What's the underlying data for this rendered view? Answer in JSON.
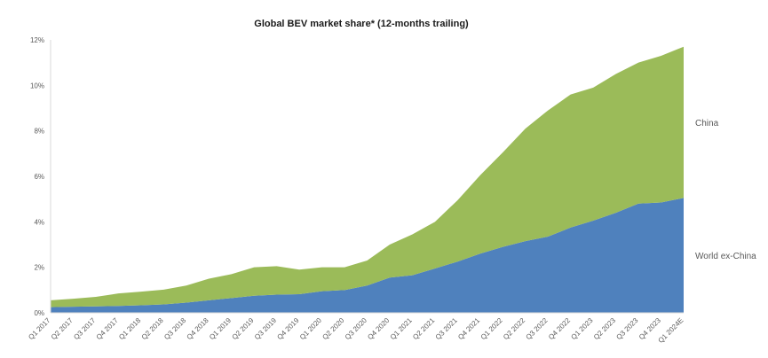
{
  "chart_data": {
    "type": "area",
    "stacked": true,
    "title": "Global BEV market share* (12-months trailing)",
    "xlabel": "",
    "ylabel": "",
    "ylim": [
      0,
      12
    ],
    "yticks": [
      0,
      2,
      4,
      6,
      8,
      10,
      12
    ],
    "ytick_labels": [
      "0%",
      "2%",
      "4%",
      "6%",
      "8%",
      "10%",
      "12%"
    ],
    "grid": false,
    "categories": [
      "Q1 2017",
      "Q2 2017",
      "Q3 2017",
      "Q4 2017",
      "Q1 2018",
      "Q2 2018",
      "Q3 2018",
      "Q4 2018",
      "Q1 2019",
      "Q2 2019",
      "Q3 2019",
      "Q4 2019",
      "Q1 2020",
      "Q2 2020",
      "Q3 2020",
      "Q4 2020",
      "Q1 2021",
      "Q2 2021",
      "Q3 2021",
      "Q4 2021",
      "Q1 2022",
      "Q2 2022",
      "Q3 2022",
      "Q4 2022",
      "Q1 2023",
      "Q2 2023",
      "Q3 2023",
      "Q4 2023",
      "Q1 2024E"
    ],
    "series": [
      {
        "name": "World ex-China",
        "color": "#4f81bd",
        "values": [
          0.25,
          0.27,
          0.28,
          0.3,
          0.33,
          0.37,
          0.45,
          0.55,
          0.65,
          0.75,
          0.8,
          0.82,
          0.95,
          1.0,
          1.2,
          1.55,
          1.65,
          1.95,
          2.25,
          2.6,
          2.9,
          3.15,
          3.35,
          3.75,
          4.05,
          4.4,
          4.8,
          4.85,
          5.05
        ]
      },
      {
        "name": "China",
        "color": "#9bbb59",
        "values": [
          0.3,
          0.35,
          0.42,
          0.55,
          0.6,
          0.65,
          0.75,
          0.95,
          1.05,
          1.25,
          1.25,
          1.08,
          1.05,
          1.0,
          1.1,
          1.45,
          1.8,
          2.05,
          2.7,
          3.45,
          4.15,
          4.95,
          5.55,
          5.85,
          5.85,
          6.1,
          6.2,
          6.45,
          6.65
        ]
      }
    ],
    "series_label_position": "right"
  }
}
